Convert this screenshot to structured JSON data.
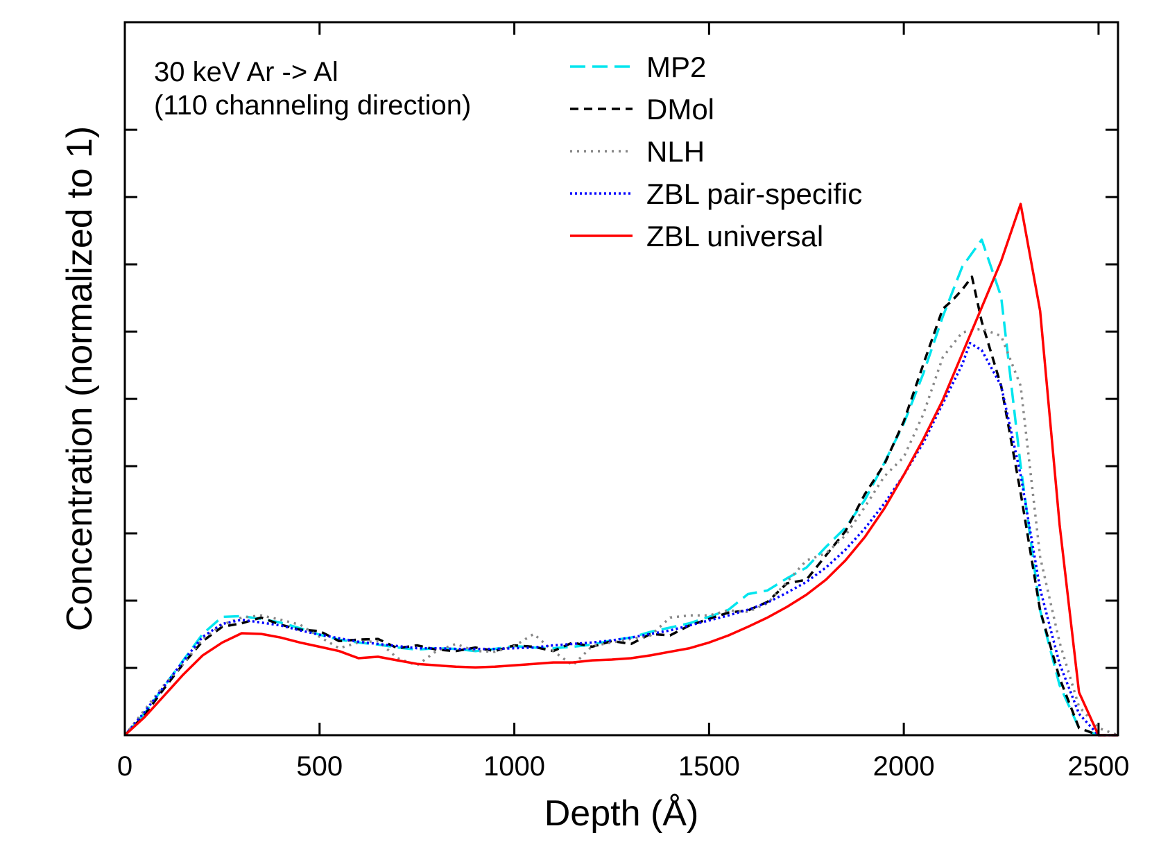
{
  "chart_data": {
    "type": "line",
    "title": "",
    "xlabel": "Depth (Å)",
    "ylabel": "Concentration (normalized to 1)",
    "xlim": [
      0,
      2550
    ],
    "ylim": [
      0,
      1
    ],
    "x_ticks": [
      0,
      500,
      1000,
      1500,
      2000,
      2500
    ],
    "y_tick_count": 9,
    "y_tick_labels_shown": false,
    "grid": false,
    "legend_position": "top-right",
    "annotations": [
      "30 keV Ar -> Al",
      "(110 channeling direction)"
    ],
    "series": [
      {
        "name": "MP2",
        "color": "#00e5ee",
        "dash": "long-dash",
        "x": [
          0,
          50,
          100,
          150,
          200,
          250,
          300,
          350,
          400,
          450,
          500,
          550,
          600,
          650,
          700,
          750,
          800,
          850,
          900,
          950,
          1000,
          1050,
          1100,
          1150,
          1200,
          1250,
          1300,
          1350,
          1400,
          1450,
          1500,
          1550,
          1600,
          1650,
          1700,
          1750,
          1800,
          1850,
          1900,
          1950,
          2000,
          2050,
          2100,
          2150,
          2200,
          2250,
          2300,
          2350,
          2400,
          2450,
          2500,
          2550
        ],
        "y": [
          0,
          0.03,
          0.068,
          0.105,
          0.142,
          0.166,
          0.167,
          0.163,
          0.158,
          0.15,
          0.141,
          0.134,
          0.13,
          0.127,
          0.123,
          0.12,
          0.122,
          0.121,
          0.118,
          0.121,
          0.125,
          0.123,
          0.122,
          0.124,
          0.127,
          0.133,
          0.137,
          0.145,
          0.151,
          0.157,
          0.166,
          0.176,
          0.198,
          0.203,
          0.22,
          0.235,
          0.264,
          0.291,
          0.33,
          0.382,
          0.437,
          0.507,
          0.587,
          0.657,
          0.695,
          0.615,
          0.378,
          0.175,
          0.07,
          0.01,
          0,
          0
        ]
      },
      {
        "name": "DMol",
        "color": "#000000",
        "dash": "short-dash",
        "x": [
          0,
          50,
          100,
          150,
          200,
          250,
          300,
          350,
          400,
          450,
          500,
          550,
          600,
          650,
          700,
          750,
          800,
          850,
          900,
          950,
          1000,
          1050,
          1100,
          1150,
          1200,
          1250,
          1300,
          1350,
          1400,
          1450,
          1500,
          1550,
          1600,
          1650,
          1700,
          1750,
          1800,
          1850,
          1900,
          1950,
          2000,
          2050,
          2100,
          2125,
          2150,
          2175,
          2200,
          2250,
          2300,
          2350,
          2400,
          2450,
          2500,
          2550
        ],
        "y": [
          0,
          0.028,
          0.065,
          0.1,
          0.132,
          0.152,
          0.157,
          0.165,
          0.155,
          0.148,
          0.146,
          0.132,
          0.134,
          0.135,
          0.122,
          0.126,
          0.12,
          0.118,
          0.123,
          0.118,
          0.126,
          0.124,
          0.118,
          0.13,
          0.124,
          0.132,
          0.128,
          0.142,
          0.14,
          0.154,
          0.163,
          0.172,
          0.175,
          0.187,
          0.213,
          0.218,
          0.252,
          0.286,
          0.338,
          0.38,
          0.44,
          0.52,
          0.598,
          0.61,
          0.625,
          0.643,
          0.58,
          0.49,
          0.34,
          0.175,
          0.08,
          0.01,
          0,
          0
        ]
      },
      {
        "name": "NLH",
        "color": "#888888",
        "dash": "dotted",
        "x": [
          0,
          50,
          100,
          150,
          200,
          250,
          300,
          350,
          400,
          450,
          500,
          550,
          600,
          650,
          700,
          750,
          800,
          850,
          900,
          950,
          1000,
          1050,
          1100,
          1150,
          1200,
          1250,
          1300,
          1350,
          1400,
          1450,
          1500,
          1550,
          1600,
          1650,
          1700,
          1750,
          1800,
          1850,
          1900,
          1950,
          2000,
          2050,
          2100,
          2150,
          2200,
          2250,
          2300,
          2350,
          2400,
          2450,
          2500,
          2550
        ],
        "y": [
          0,
          0.035,
          0.07,
          0.1,
          0.135,
          0.155,
          0.165,
          0.168,
          0.162,
          0.155,
          0.138,
          0.122,
          0.13,
          0.132,
          0.108,
          0.098,
          0.118,
          0.128,
          0.118,
          0.117,
          0.125,
          0.142,
          0.118,
          0.098,
          0.125,
          0.13,
          0.135,
          0.14,
          0.165,
          0.168,
          0.168,
          0.175,
          0.173,
          0.185,
          0.215,
          0.245,
          0.255,
          0.28,
          0.32,
          0.363,
          0.39,
          0.45,
          0.53,
          0.565,
          0.57,
          0.56,
          0.49,
          0.25,
          0.13,
          0.04,
          0.01,
          0
        ]
      },
      {
        "name": "ZBL pair-specific",
        "color": "#0000ff",
        "dash": "fine-dotted",
        "x": [
          0,
          50,
          100,
          150,
          200,
          250,
          300,
          350,
          400,
          450,
          500,
          550,
          600,
          650,
          700,
          750,
          800,
          850,
          900,
          950,
          1000,
          1050,
          1100,
          1150,
          1200,
          1250,
          1300,
          1350,
          1400,
          1450,
          1500,
          1550,
          1600,
          1650,
          1700,
          1750,
          1800,
          1850,
          1900,
          1950,
          2000,
          2050,
          2100,
          2150,
          2170,
          2200,
          2250,
          2300,
          2350,
          2400,
          2450,
          2500,
          2550
        ],
        "y": [
          0,
          0.032,
          0.068,
          0.104,
          0.138,
          0.156,
          0.162,
          0.158,
          0.154,
          0.147,
          0.141,
          0.136,
          0.131,
          0.128,
          0.125,
          0.122,
          0.122,
          0.121,
          0.121,
          0.121,
          0.122,
          0.123,
          0.126,
          0.128,
          0.13,
          0.133,
          0.137,
          0.142,
          0.147,
          0.154,
          0.161,
          0.168,
          0.176,
          0.186,
          0.2,
          0.215,
          0.235,
          0.26,
          0.29,
          0.325,
          0.365,
          0.41,
          0.465,
          0.52,
          0.55,
          0.54,
          0.49,
          0.365,
          0.205,
          0.1,
          0.03,
          0,
          0
        ]
      },
      {
        "name": "ZBL universal",
        "color": "#ff0000",
        "dash": "solid",
        "x": [
          0,
          50,
          100,
          150,
          200,
          250,
          300,
          350,
          400,
          450,
          500,
          550,
          600,
          650,
          700,
          750,
          800,
          850,
          900,
          950,
          1000,
          1050,
          1100,
          1150,
          1200,
          1250,
          1300,
          1350,
          1400,
          1450,
          1500,
          1550,
          1600,
          1650,
          1700,
          1750,
          1800,
          1850,
          1900,
          1950,
          2000,
          2050,
          2100,
          2150,
          2200,
          2250,
          2300,
          2350,
          2400,
          2450,
          2500,
          2550
        ],
        "y": [
          0,
          0.025,
          0.055,
          0.085,
          0.112,
          0.13,
          0.143,
          0.142,
          0.137,
          0.13,
          0.124,
          0.118,
          0.108,
          0.11,
          0.105,
          0.1,
          0.098,
          0.096,
          0.095,
          0.096,
          0.098,
          0.1,
          0.102,
          0.102,
          0.105,
          0.106,
          0.108,
          0.112,
          0.117,
          0.122,
          0.13,
          0.14,
          0.152,
          0.165,
          0.18,
          0.197,
          0.218,
          0.245,
          0.278,
          0.318,
          0.365,
          0.415,
          0.47,
          0.535,
          0.6,
          0.665,
          0.745,
          0.595,
          0.295,
          0.06,
          0,
          0
        ]
      }
    ]
  }
}
